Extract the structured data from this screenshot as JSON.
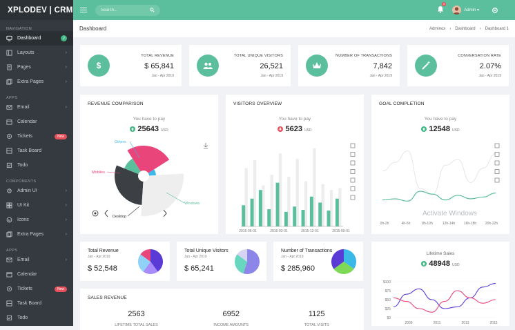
{
  "brand": "XPLODEV | CRM",
  "search": {
    "placeholder": "Search..."
  },
  "topbar": {
    "notification_count": "8",
    "user_label": "Admin"
  },
  "page": {
    "title": "Dashboard",
    "breadcrumb": [
      "Adminox",
      "Dashboard",
      "Dashboard 1"
    ]
  },
  "sidebar": {
    "sections": [
      {
        "heading": "NAVIGATION",
        "items": [
          {
            "label": "Dashboard",
            "icon": "monitor-icon",
            "badge": "2"
          },
          {
            "label": "Layouts",
            "icon": "layout-icon"
          },
          {
            "label": "Pages",
            "icon": "pages-icon"
          },
          {
            "label": "Extra Pages",
            "icon": "extra-pages-icon"
          }
        ]
      },
      {
        "heading": "APPS",
        "items": [
          {
            "label": "Email",
            "icon": "mail-icon"
          },
          {
            "label": "Calendar",
            "icon": "calendar-icon"
          },
          {
            "label": "Tickets",
            "icon": "ticket-icon",
            "badge": "New"
          },
          {
            "label": "Task Board",
            "icon": "taskboard-icon"
          },
          {
            "label": "Todo",
            "icon": "todo-icon"
          }
        ]
      },
      {
        "heading": "COMPONENTS",
        "items": [
          {
            "label": "Admin UI",
            "icon": "gear-icon"
          },
          {
            "label": "UI Kit",
            "icon": "kit-icon"
          },
          {
            "label": "Icons",
            "icon": "icons-icon"
          },
          {
            "label": "Extra Pages",
            "icon": "extra-pages-icon"
          }
        ]
      },
      {
        "heading": "APPS",
        "items": [
          {
            "label": "Email",
            "icon": "mail-icon"
          },
          {
            "label": "Calendar",
            "icon": "calendar-icon"
          },
          {
            "label": "Tickets",
            "icon": "ticket-icon",
            "badge": "New"
          },
          {
            "label": "Task Board",
            "icon": "taskboard-icon"
          },
          {
            "label": "Todo",
            "icon": "todo-icon"
          }
        ]
      }
    ]
  },
  "stats": [
    {
      "label": "TOTAL REVENUE",
      "value": "$ 65,841",
      "sub": "Jan - Apr 2019",
      "icon": "dollar-icon"
    },
    {
      "label": "TOTAL UNIQUE VISITORS",
      "value": "26,521",
      "sub": "Jan - Apr 2019",
      "icon": "users-icon"
    },
    {
      "label": "NUMBER OF TRANSACTIONS",
      "value": "7,842",
      "sub": "Jan - Apr 2019",
      "icon": "crown-icon"
    },
    {
      "label": "CONVERSATION RATE",
      "value": "2.07%",
      "sub": "Jan - Apr 2019",
      "icon": "magic-wand-icon"
    }
  ],
  "revenue_comparison": {
    "title": "REVENUE COMPARISON",
    "pay_label": "You have to pay",
    "amount": "25643",
    "currency": "USD"
  },
  "visitors_overview": {
    "title": "VISITORS OVERVIEW",
    "pay_label": "You have to pay",
    "amount": "5623",
    "currency": "USD"
  },
  "goal_completion": {
    "title": "GOAL COMPLETION",
    "pay_label": "You have to pay",
    "amount": "12548",
    "currency": "USD",
    "watermark": "Activate Windows"
  },
  "mini_stats": [
    {
      "label": "Total Revenue",
      "sub": "Jan - Apr 2019",
      "value": "$ 52,548"
    },
    {
      "label": "Total Unique Visitors",
      "sub": "Jan - Apr 2019",
      "value": "$ 65,241"
    },
    {
      "label": "Number of Transactions",
      "sub": "Jan - Apr 2019",
      "value": "$ 285,960"
    }
  ],
  "lifetime_sales": {
    "title": "Lifetime Sales",
    "amount": "48948",
    "currency": "USD"
  },
  "sales_revenue": {
    "title": "SALES REVENUE",
    "items": [
      {
        "value": "2563",
        "label": "LIFETIME TOTAL SALES"
      },
      {
        "value": "6952",
        "label": "INCOME AMOUNTS"
      },
      {
        "value": "1125",
        "label": "TOTAL VISITS"
      }
    ]
  },
  "colors": {
    "accent": "#5bbf9d",
    "sidebar": "#343a40",
    "pink": "#e9457b",
    "purple": "#5b3bd6"
  },
  "chart_data": [
    {
      "type": "pie",
      "title": "REVENUE COMPARISON",
      "categories": [
        "Desktop",
        "Windows",
        "Mobiles",
        "Others",
        "Other"
      ],
      "values": [
        30,
        10,
        25,
        8,
        27
      ],
      "labels_visible": [
        "Others",
        "Mobiles",
        "Windows",
        "Desktop"
      ]
    },
    {
      "type": "bar",
      "title": "VISITORS OVERVIEW",
      "x_labels": [
        "2016-06-01",
        "2016-03-01",
        "2015-12-01",
        "2015-09-01"
      ],
      "series": [
        {
          "name": "light",
          "values": [
            88,
            100,
            62,
            78,
            110,
            75,
            102,
            68,
            118,
            64,
            55,
            58
          ]
        },
        {
          "name": "green",
          "values": [
            32,
            42,
            55,
            26,
            66,
            22,
            30,
            25,
            45,
            36,
            24,
            42
          ]
        }
      ],
      "ylim": [
        0,
        125
      ]
    },
    {
      "type": "line",
      "title": "GOAL COMPLETION",
      "x_labels": [
        "0h-2h",
        "4h-6h",
        "8h-10h",
        "12h-14h",
        "16h-18h",
        "20h-22h"
      ],
      "series": [
        {
          "name": "light",
          "values": [
            60,
            75,
            95,
            30,
            20,
            70,
            80,
            40,
            65,
            90
          ]
        },
        {
          "name": "green",
          "values": [
            10,
            12,
            8,
            25,
            20,
            10,
            18,
            12,
            15,
            22
          ]
        }
      ],
      "ylim": [
        0,
        110
      ]
    },
    {
      "type": "pie",
      "title": "Total Revenue",
      "values": [
        40,
        20,
        25,
        15
      ]
    },
    {
      "type": "pie",
      "title": "Total Unique Visitors",
      "values": [
        55,
        30,
        15
      ]
    },
    {
      "type": "pie",
      "title": "Number of Transactions",
      "values": [
        35,
        30,
        35
      ]
    },
    {
      "type": "line",
      "title": "Lifetime Sales",
      "x_labels": [
        "2009",
        "2011",
        "2013",
        "2015"
      ],
      "y_ticks": [
        "$100",
        "$75",
        "$50",
        "$25",
        "$0"
      ],
      "series": [
        {
          "name": "purple",
          "values": [
            30,
            65,
            80,
            50,
            25,
            30,
            55,
            85,
            95
          ]
        },
        {
          "name": "pink",
          "values": [
            55,
            45,
            25,
            15,
            45,
            75,
            55,
            40,
            50
          ]
        }
      ],
      "ylim": [
        0,
        100
      ]
    }
  ]
}
